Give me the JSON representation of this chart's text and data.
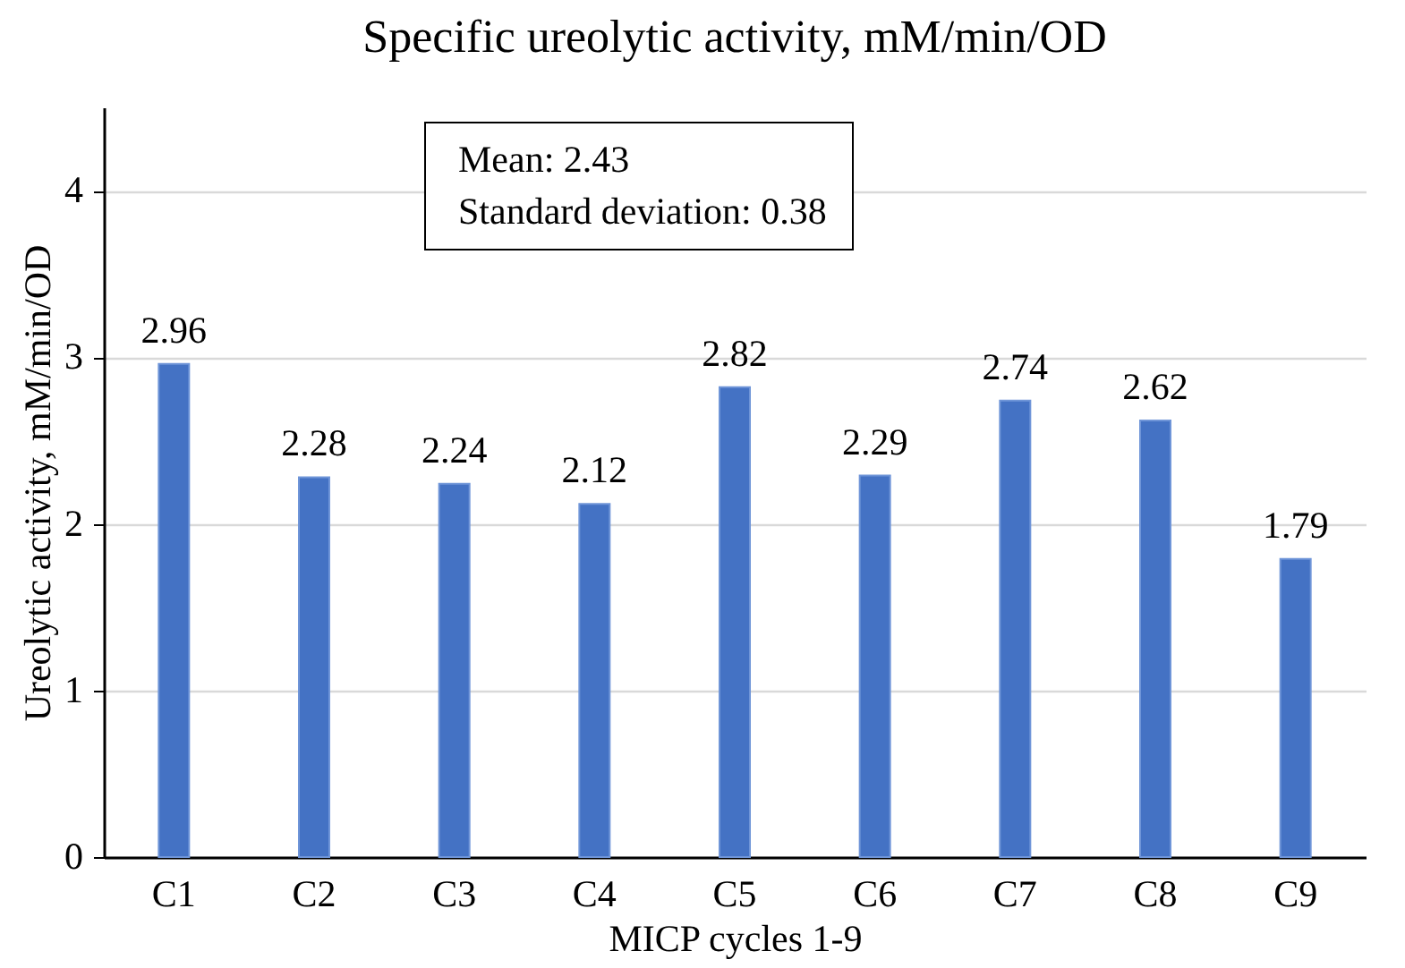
{
  "chart_data": {
    "type": "bar",
    "title": "Specific ureolytic activity, mM/min/OD",
    "xlabel": "MICP cycles 1-9",
    "ylabel": "Ureolytic activity, mM/min/OD",
    "categories": [
      "C1",
      "C2",
      "C3",
      "C4",
      "C5",
      "C6",
      "C7",
      "C8",
      "C9"
    ],
    "values": [
      2.96,
      2.28,
      2.24,
      2.12,
      2.82,
      2.29,
      2.74,
      2.62,
      1.79
    ],
    "color": "#4472c4",
    "ylim": [
      0,
      4.5
    ],
    "yticks": [
      0,
      1,
      2,
      3,
      4
    ],
    "grid": "y",
    "data_labels": true,
    "annotations": [
      "Mean: 2.43",
      "Standard deviation: 0.38"
    ]
  }
}
